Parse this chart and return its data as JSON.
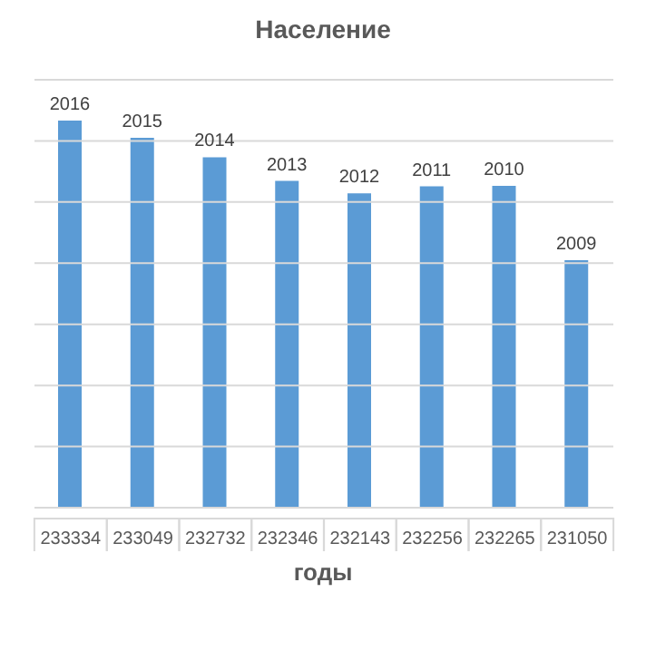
{
  "chart_data": {
    "type": "bar",
    "title": "Население",
    "xlabel": "годы",
    "categories": [
      "2016",
      "2015",
      "2014",
      "2013",
      "2012",
      "2011",
      "2010",
      "2009"
    ],
    "values": [
      233334,
      233049,
      232732,
      232346,
      232143,
      232256,
      232265,
      231050
    ],
    "color": "#5b9bd5",
    "data_labels": true,
    "ylim": [
      227000,
      234000
    ],
    "yticks": [
      {
        "value": 227000,
        "label": null
      },
      {
        "value": 228000,
        "label": null
      },
      {
        "value": 229000,
        "label": null
      },
      {
        "value": 230000,
        "label": null
      },
      {
        "value": 231000,
        "label": null
      },
      {
        "value": 232000,
        "label": null
      },
      {
        "value": 233000,
        "label": null
      },
      {
        "value": 234000,
        "label": null
      }
    ],
    "tick_labels": "x",
    "grid": "y"
  }
}
